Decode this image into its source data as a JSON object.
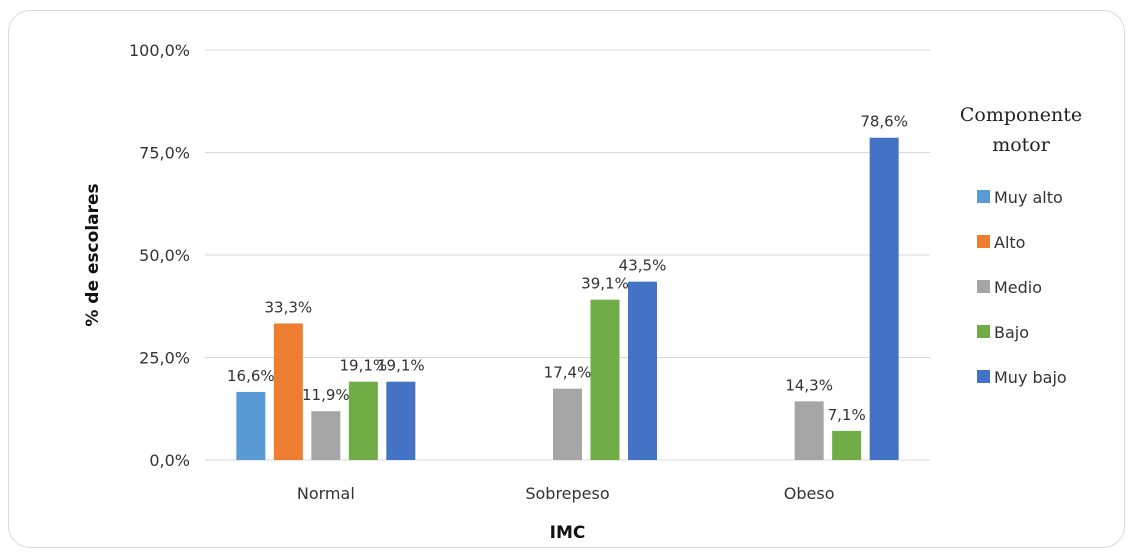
{
  "chart_data": {
    "type": "bar",
    "categories": [
      "Normal",
      "Sobrepeso",
      "Obeso"
    ],
    "series": [
      {
        "name": "Muy alto",
        "color": "#5B9BD5",
        "values": [
          16.6,
          null,
          null
        ]
      },
      {
        "name": "Alto",
        "color": "#ED7D31",
        "values": [
          33.3,
          null,
          null
        ]
      },
      {
        "name": "Medio",
        "color": "#A5A5A5",
        "values": [
          11.9,
          17.4,
          14.3
        ]
      },
      {
        "name": "Bajo",
        "color": "#70AD47",
        "values": [
          19.1,
          39.1,
          7.1
        ]
      },
      {
        "name": "Muy bajo",
        "color": "#4472C4",
        "values": [
          19.1,
          43.5,
          78.6
        ]
      }
    ],
    "data_labels": [
      [
        "16,6%",
        null,
        null
      ],
      [
        "33,3%",
        null,
        null
      ],
      [
        "11,9%",
        "17,4%",
        "14,3%"
      ],
      [
        "19,1%",
        "39,1%",
        "7,1%"
      ],
      [
        "19,1%",
        "43,5%",
        "78,6%"
      ]
    ],
    "xlabel": "IMC",
    "ylabel": "% de escolares",
    "ylim": [
      0,
      100
    ],
    "yticks": [
      0,
      25,
      50,
      75,
      100
    ],
    "ytick_labels": [
      "0,0%",
      "25,0%",
      "50,0%",
      "75,0%",
      "100,0%"
    ],
    "legend_title_lines": [
      "Componente",
      "motor"
    ],
    "legend_position": "right",
    "grid": true,
    "gridline_color": "#d9d9d9"
  }
}
